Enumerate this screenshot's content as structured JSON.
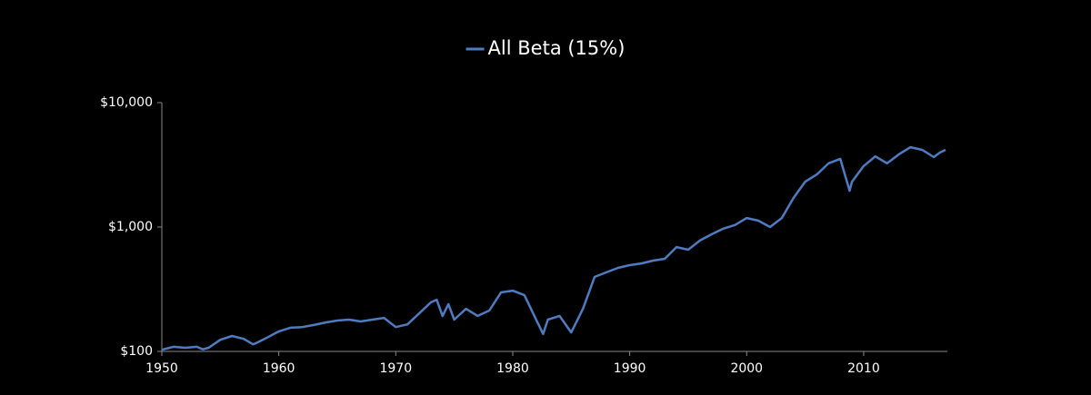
{
  "chart_data": {
    "type": "line",
    "log_y": true,
    "legend_position": "top",
    "series": [
      {
        "name": "All Beta (15%)",
        "color": "#4f7cc0",
        "x": [
          1950,
          1951,
          1952,
          1953,
          1953.5,
          1954,
          1955,
          1956,
          1957,
          1957.8,
          1958,
          1959,
          1960,
          1961,
          1962,
          1963,
          1964,
          1965,
          1966,
          1967,
          1968,
          1969,
          1970,
          1971,
          1972,
          1973,
          1973.5,
          1974,
          1974.5,
          1975,
          1976,
          1977,
          1978,
          1979,
          1980,
          1981,
          1982,
          1982.6,
          1983,
          1984,
          1985,
          1986,
          1987,
          1988,
          1989,
          1990,
          1991,
          1992,
          1993,
          1994,
          1995,
          1996,
          1997,
          1998,
          1999,
          2000,
          2001,
          2002,
          2003,
          2004,
          2005,
          2006,
          2007,
          2008,
          2008.8,
          2009,
          2010,
          2011,
          2012,
          2013,
          2014,
          2015,
          2016,
          2016.5,
          2017
        ],
        "values": [
          103,
          109,
          107,
          109,
          104,
          107,
          124,
          133,
          126,
          114,
          116,
          129,
          145,
          155,
          157,
          163,
          171,
          177,
          180,
          174,
          180,
          186,
          157,
          165,
          202,
          248,
          260,
          193,
          240,
          180,
          220,
          193,
          213,
          298,
          308,
          283,
          180,
          138,
          180,
          193,
          142,
          220,
          397,
          432,
          469,
          494,
          510,
          537,
          555,
          690,
          657,
          778,
          874,
          970,
          1037,
          1181,
          1125,
          1000,
          1181,
          1710,
          2314,
          2648,
          3249,
          3536,
          1956,
          2314,
          3090,
          3700,
          3249,
          3830,
          4380,
          4170,
          3650,
          3960,
          4170
        ]
      }
    ],
    "xlim": [
      1950,
      2017
    ],
    "xticks": [
      1950,
      1960,
      1970,
      1980,
      1990,
      2000,
      2010
    ],
    "ylim": [
      100,
      10000
    ],
    "yticks": [
      {
        "value": 100,
        "label": "$100"
      },
      {
        "value": 1000,
        "label": "$1,000"
      },
      {
        "value": 10000,
        "label": "$10,000"
      }
    ]
  }
}
